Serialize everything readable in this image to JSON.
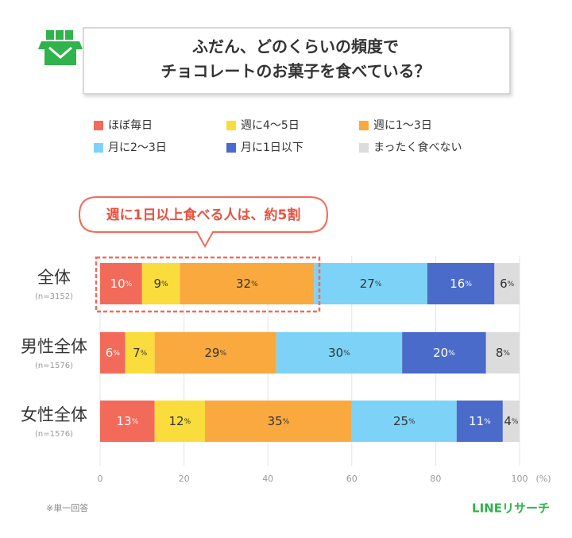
{
  "chart_data": {
    "type": "stacked-bar",
    "title": [
      "ふだん、どのくらいの頻度で",
      "チョコレートのお菓子を食べている？"
    ],
    "categories": [
      "全体",
      "男性全体",
      "女性全体"
    ],
    "category_notes": [
      "(n=3152)",
      "(n=1576)",
      "(n=1576)"
    ],
    "series": [
      {
        "name": "ほぼ毎日",
        "color": "#f26a5a",
        "values": [
          10,
          6,
          13
        ],
        "value_labels": [
          "10%",
          "6%",
          "13%"
        ]
      },
      {
        "name": "週に4～5日",
        "color": "#fadc3c",
        "values": [
          9,
          7,
          12
        ],
        "value_labels": [
          "9%",
          "7%",
          "12%"
        ]
      },
      {
        "name": "週に1～3日",
        "color": "#f9a93e",
        "values": [
          32,
          29,
          35
        ],
        "value_labels": [
          "32%",
          "29%",
          "35%"
        ]
      },
      {
        "name": "月に2～3日",
        "color": "#7dd3f7",
        "values": [
          27,
          30,
          25
        ],
        "value_labels": [
          "27%",
          "30%",
          "25%"
        ]
      },
      {
        "name": "月に1日以下",
        "color": "#4a6bc9",
        "values": [
          16,
          20,
          11
        ],
        "value_labels": [
          "16%",
          "20%",
          "11%"
        ]
      },
      {
        "name": "まったく食べない",
        "color": "#dcdcdc",
        "values": [
          6,
          8,
          4
        ],
        "value_labels": [
          "6%",
          "8%",
          "4%"
        ]
      }
    ],
    "xlim": [
      0,
      100
    ],
    "xticks": [
      0,
      20,
      40,
      60,
      80,
      100
    ],
    "xlabel": "(%)",
    "grid": true,
    "annotation": "週に1日以上食べる人は、約5割",
    "footnote": "※単一回答",
    "brand": "LINEリサーチ"
  }
}
